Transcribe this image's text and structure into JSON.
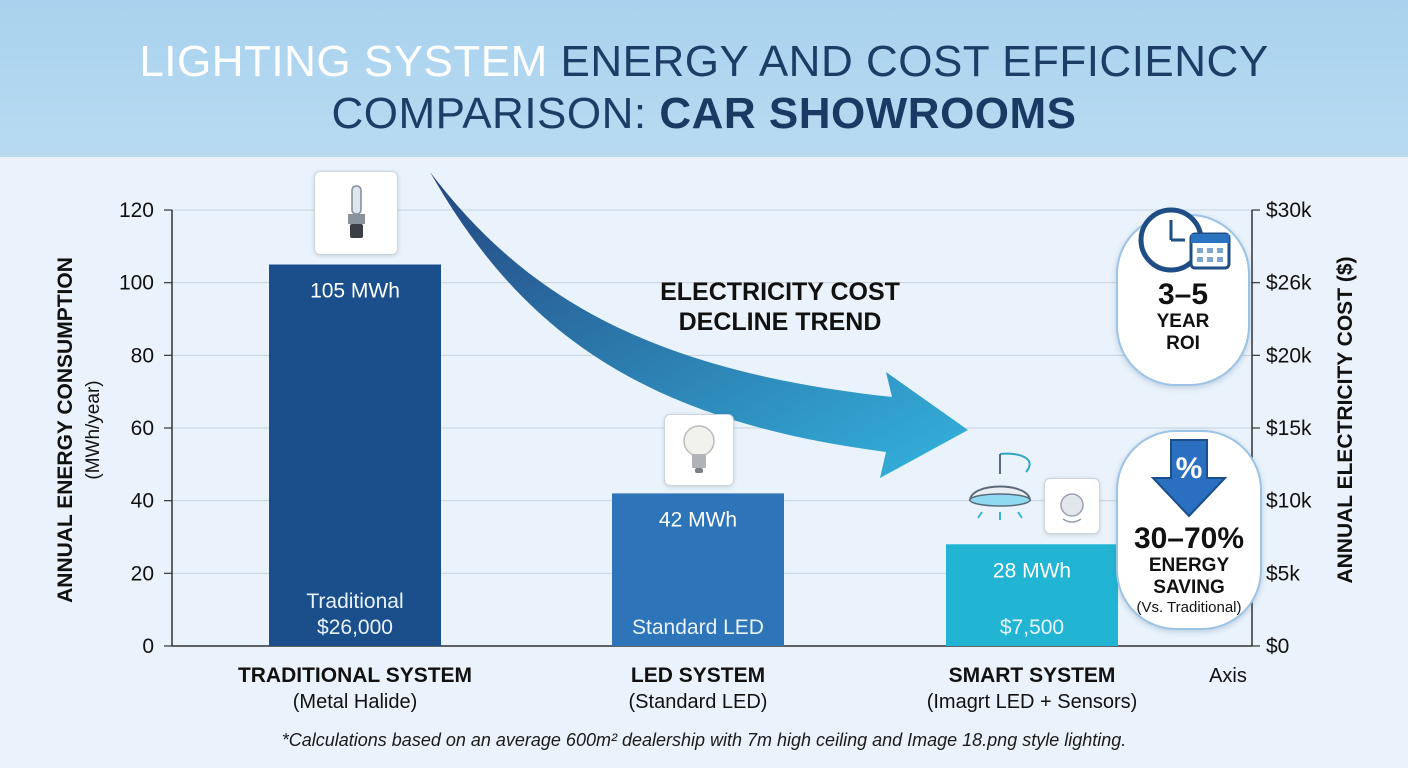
{
  "title": {
    "part1": "LIGHTING SYSTEM ",
    "part2": "ENERGY AND COST EFFICIENCY",
    "part3": "COMPARISON: ",
    "part4": "CAR SHOWROOMS"
  },
  "chart_data": {
    "type": "bar",
    "categories": [
      "TRADITIONAL SYSTEM",
      "LED SYSTEM",
      "SMART SYSTEM"
    ],
    "category_sublabels": [
      "(Metal Halide)",
      "(Standard LED)",
      "(Imagrt LED + Sensors)"
    ],
    "values": [
      105,
      42,
      28
    ],
    "value_labels": [
      "105 MWh",
      "42 MWh",
      "28 MWh"
    ],
    "bar_inner_labels": [
      [
        "Traditional",
        "$26,000"
      ],
      [
        "Standard LED"
      ],
      [
        "$7,500"
      ]
    ],
    "bar_colors": [
      "#1a4f8c",
      "#2e74b8",
      "#22b5d3"
    ],
    "ylabel": "ANNUAL ENERGY CONSUMPTION",
    "ylabel_unit": "(MWh/year)",
    "ylim": [
      0,
      120
    ],
    "yticks": [
      0,
      20,
      40,
      60,
      80,
      100,
      120
    ],
    "y2label": "ANNUAL ELECTRICITY COST ($)",
    "y2ticks": [
      "$0",
      "$5k",
      "$10k",
      "$15k",
      "$20k",
      "$26k",
      "$30k"
    ],
    "x_axis_note": "Axis",
    "trend_label": [
      "ELECTRICITY COST",
      "DECLINE TREND"
    ],
    "grid": true
  },
  "badges": {
    "roi": {
      "value": "3–5",
      "line1": "YEAR",
      "line2": "ROI"
    },
    "saving": {
      "value": "30–70%",
      "line1": "ENERGY",
      "line2": "SAVING",
      "note": "(Vs. Traditional)",
      "symbol": "%"
    }
  },
  "icons": [
    "hid-bulb-icon",
    "led-bulb-icon",
    "smart-light-icon",
    "motion-sensor-icon",
    "clock-icon",
    "calendar-icon",
    "percent-down-arrow-icon"
  ],
  "footnote": "*Calculations based on an average 600m² dealership with 7m high ceiling and Image 18.png style lighting."
}
